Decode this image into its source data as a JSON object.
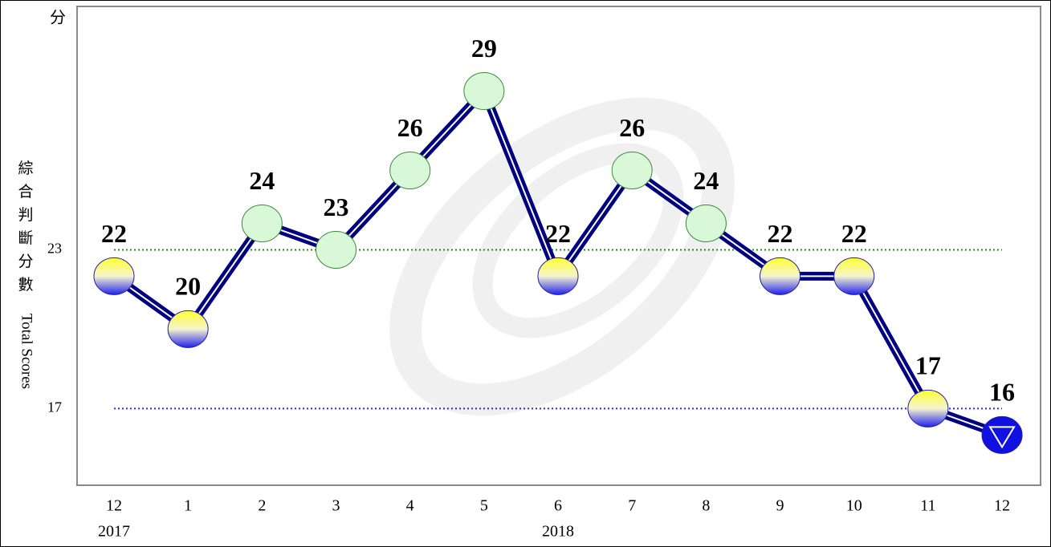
{
  "chart_data": {
    "type": "line",
    "y_unit": "分",
    "y_title": "綜合判斷分數",
    "y_title_en": "Total Scores",
    "categories": [
      "12",
      "1",
      "2",
      "3",
      "4",
      "5",
      "6",
      "7",
      "8",
      "9",
      "10",
      "11",
      "12"
    ],
    "years": [
      "2017",
      null,
      null,
      null,
      null,
      null,
      "2018",
      null,
      null,
      null,
      null,
      null,
      null
    ],
    "values": [
      22,
      20,
      24,
      23,
      26,
      29,
      22,
      26,
      24,
      22,
      22,
      17,
      16
    ],
    "color": "#000080",
    "ylim": [
      14.1,
      32.2
    ],
    "yticks": [
      17,
      23
    ],
    "ytick_colors": [
      "#2a2ad8",
      "#1c8c1c"
    ]
  }
}
